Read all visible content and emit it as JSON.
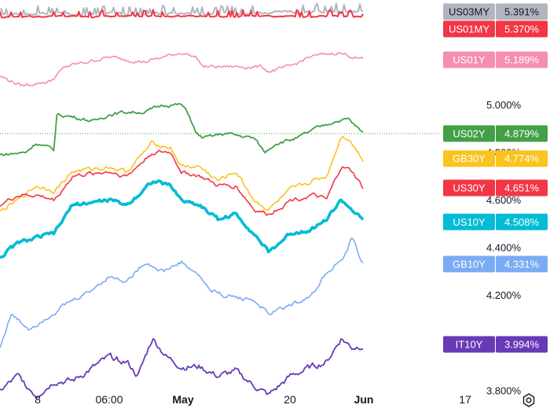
{
  "chart_data": {
    "type": "line",
    "ylim": [
      3.72,
      5.44
    ],
    "y_ticks": [
      "5.000%",
      "4.800%",
      "4.600%",
      "4.400%",
      "4.200%",
      "3.800%"
    ],
    "x_ticks": [
      {
        "label": "8",
        "bold": false
      },
      {
        "label": "06:00",
        "bold": false
      },
      {
        "label": "May",
        "bold": true
      },
      {
        "label": "20",
        "bold": false
      },
      {
        "label": "Jun",
        "bold": true
      },
      {
        "label": "17",
        "bold": false
      }
    ],
    "grid": false,
    "series": [
      {
        "name": "US03MY",
        "last": "5.391%",
        "color": "#b2b5be",
        "base": 5.38,
        "amp": 0.01,
        "spikes": 0.035,
        "width": 2.0,
        "keys": [
          [
            0,
            5.38
          ],
          [
            0.5,
            5.385
          ],
          [
            1,
            5.39
          ]
        ]
      },
      {
        "name": "US01MY",
        "last": "5.370%",
        "color": "#f23645",
        "base": 5.37,
        "amp": 0.005,
        "spikes": 0.028,
        "width": 2.0,
        "keys": [
          [
            0,
            5.37
          ],
          [
            0.5,
            5.372
          ],
          [
            1,
            5.37
          ]
        ]
      },
      {
        "name": "US01Y",
        "last": "5.189%",
        "color": "#f48fb1",
        "amp": 0.012,
        "width": 1.6,
        "keys": [
          [
            0,
            5.12
          ],
          [
            0.06,
            5.08
          ],
          [
            0.14,
            5.1
          ],
          [
            0.18,
            5.16
          ],
          [
            0.3,
            5.2
          ],
          [
            0.4,
            5.18
          ],
          [
            0.5,
            5.22
          ],
          [
            0.54,
            5.2
          ],
          [
            0.56,
            5.16
          ],
          [
            0.72,
            5.16
          ],
          [
            0.74,
            5.14
          ],
          [
            0.8,
            5.16
          ],
          [
            0.85,
            5.2
          ],
          [
            0.93,
            5.22
          ],
          [
            1.0,
            5.19
          ]
        ]
      },
      {
        "name": "US02Y",
        "last": "4.879%",
        "color": "#43a047",
        "amp": 0.012,
        "width": 1.8,
        "keys": [
          [
            0,
            4.79
          ],
          [
            0.07,
            4.8
          ],
          [
            0.1,
            4.84
          ],
          [
            0.15,
            4.81
          ],
          [
            0.155,
            4.96
          ],
          [
            0.2,
            4.95
          ],
          [
            0.26,
            4.93
          ],
          [
            0.3,
            4.96
          ],
          [
            0.35,
            4.97
          ],
          [
            0.4,
            4.97
          ],
          [
            0.45,
            5.0
          ],
          [
            0.5,
            5.0
          ],
          [
            0.52,
            4.96
          ],
          [
            0.54,
            4.88
          ],
          [
            0.56,
            4.86
          ],
          [
            0.62,
            4.88
          ],
          [
            0.7,
            4.86
          ],
          [
            0.73,
            4.8
          ],
          [
            0.76,
            4.84
          ],
          [
            0.82,
            4.86
          ],
          [
            0.87,
            4.9
          ],
          [
            0.92,
            4.93
          ],
          [
            0.96,
            4.94
          ],
          [
            1.0,
            4.88
          ]
        ]
      },
      {
        "name": "GB30Y",
        "last": "4.774%",
        "color": "#f9c320",
        "amp": 0.015,
        "width": 1.6,
        "keys": [
          [
            0,
            4.55
          ],
          [
            0.05,
            4.6
          ],
          [
            0.1,
            4.66
          ],
          [
            0.15,
            4.64
          ],
          [
            0.2,
            4.72
          ],
          [
            0.3,
            4.74
          ],
          [
            0.35,
            4.72
          ],
          [
            0.42,
            4.84
          ],
          [
            0.47,
            4.82
          ],
          [
            0.5,
            4.74
          ],
          [
            0.55,
            4.74
          ],
          [
            0.6,
            4.68
          ],
          [
            0.65,
            4.72
          ],
          [
            0.7,
            4.6
          ],
          [
            0.74,
            4.56
          ],
          [
            0.8,
            4.64
          ],
          [
            0.86,
            4.68
          ],
          [
            0.9,
            4.7
          ],
          [
            0.94,
            4.87
          ],
          [
            0.96,
            4.86
          ],
          [
            1.0,
            4.77
          ]
        ]
      },
      {
        "name": "US30Y",
        "last": "4.651%",
        "color": "#f23645",
        "amp": 0.015,
        "width": 1.6,
        "keys": [
          [
            0,
            4.58
          ],
          [
            0.05,
            4.62
          ],
          [
            0.1,
            4.62
          ],
          [
            0.15,
            4.6
          ],
          [
            0.2,
            4.7
          ],
          [
            0.3,
            4.72
          ],
          [
            0.35,
            4.7
          ],
          [
            0.42,
            4.8
          ],
          [
            0.47,
            4.8
          ],
          [
            0.5,
            4.72
          ],
          [
            0.55,
            4.7
          ],
          [
            0.6,
            4.66
          ],
          [
            0.65,
            4.66
          ],
          [
            0.7,
            4.56
          ],
          [
            0.74,
            4.54
          ],
          [
            0.8,
            4.6
          ],
          [
            0.86,
            4.62
          ],
          [
            0.9,
            4.6
          ],
          [
            0.94,
            4.74
          ],
          [
            0.97,
            4.72
          ],
          [
            1.0,
            4.65
          ]
        ]
      },
      {
        "name": "US10Y",
        "last": "4.508%",
        "color": "#00bcd4",
        "amp": 0.014,
        "width": 3.6,
        "keys": [
          [
            0,
            4.36
          ],
          [
            0.05,
            4.42
          ],
          [
            0.1,
            4.44
          ],
          [
            0.15,
            4.46
          ],
          [
            0.2,
            4.58
          ],
          [
            0.3,
            4.6
          ],
          [
            0.35,
            4.58
          ],
          [
            0.42,
            4.68
          ],
          [
            0.47,
            4.66
          ],
          [
            0.5,
            4.6
          ],
          [
            0.55,
            4.58
          ],
          [
            0.6,
            4.52
          ],
          [
            0.65,
            4.54
          ],
          [
            0.7,
            4.46
          ],
          [
            0.74,
            4.38
          ],
          [
            0.8,
            4.46
          ],
          [
            0.86,
            4.48
          ],
          [
            0.9,
            4.52
          ],
          [
            0.94,
            4.6
          ],
          [
            0.97,
            4.56
          ],
          [
            1.0,
            4.51
          ]
        ]
      },
      {
        "name": "GB10Y",
        "last": "4.331%",
        "color": "#7aacf4",
        "amp": 0.015,
        "width": 1.6,
        "keys": [
          [
            0,
            3.98
          ],
          [
            0.03,
            4.12
          ],
          [
            0.08,
            4.06
          ],
          [
            0.12,
            4.1
          ],
          [
            0.18,
            4.16
          ],
          [
            0.25,
            4.22
          ],
          [
            0.3,
            4.28
          ],
          [
            0.35,
            4.26
          ],
          [
            0.4,
            4.34
          ],
          [
            0.45,
            4.3
          ],
          [
            0.5,
            4.34
          ],
          [
            0.55,
            4.28
          ],
          [
            0.58,
            4.22
          ],
          [
            0.62,
            4.2
          ],
          [
            0.7,
            4.18
          ],
          [
            0.74,
            4.12
          ],
          [
            0.8,
            4.16
          ],
          [
            0.86,
            4.2
          ],
          [
            0.9,
            4.3
          ],
          [
            0.95,
            4.36
          ],
          [
            0.97,
            4.44
          ],
          [
            1.0,
            4.33
          ]
        ]
      },
      {
        "name": "IT10Y",
        "last": "3.994%",
        "color": "#673ab7",
        "amp": 0.022,
        "width": 1.8,
        "keys": [
          [
            0,
            3.8
          ],
          [
            0.05,
            3.86
          ],
          [
            0.1,
            3.78
          ],
          [
            0.15,
            3.84
          ],
          [
            0.2,
            3.84
          ],
          [
            0.3,
            3.94
          ],
          [
            0.35,
            3.92
          ],
          [
            0.38,
            3.86
          ],
          [
            0.42,
            4.02
          ],
          [
            0.46,
            3.94
          ],
          [
            0.5,
            3.9
          ],
          [
            0.55,
            3.9
          ],
          [
            0.6,
            3.86
          ],
          [
            0.65,
            3.88
          ],
          [
            0.7,
            3.82
          ],
          [
            0.74,
            3.78
          ],
          [
            0.8,
            3.86
          ],
          [
            0.86,
            3.9
          ],
          [
            0.9,
            3.92
          ],
          [
            0.94,
            4.02
          ],
          [
            0.97,
            3.98
          ],
          [
            1.0,
            3.99
          ]
        ]
      }
    ]
  }
}
